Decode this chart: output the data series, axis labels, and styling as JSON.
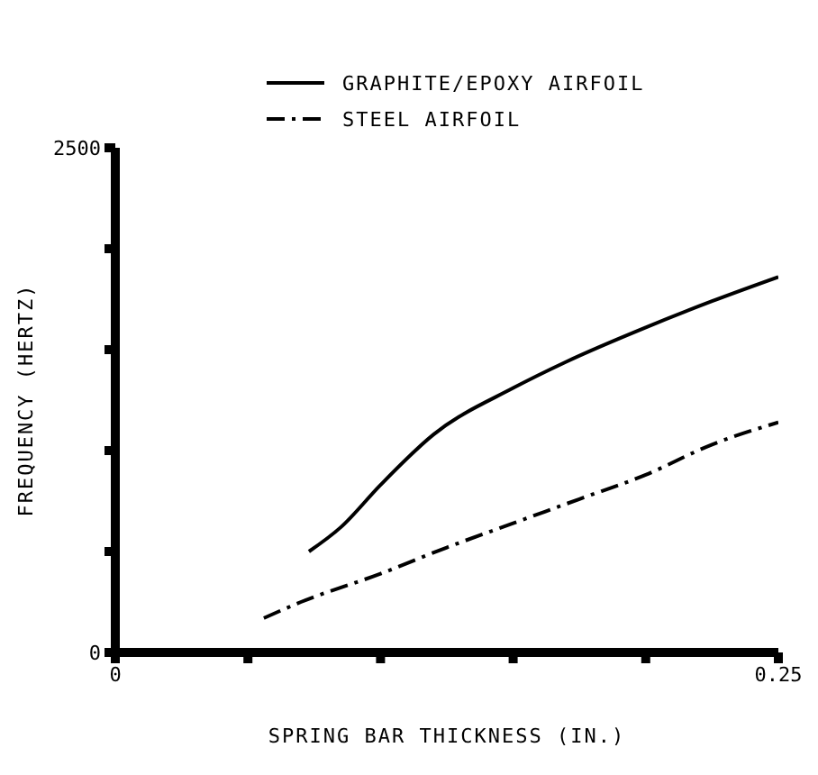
{
  "chart_data": {
    "type": "line",
    "xlabel": "SPRING BAR THICKNESS (IN.)",
    "ylabel": "FREQUENCY (HERTZ)",
    "xlim": [
      0,
      0.25
    ],
    "xticks": [
      0,
      {
        "value": 0.05,
        "label": null
      },
      {
        "value": 0.1,
        "label": null
      },
      {
        "value": 0.15,
        "label": null
      },
      {
        "value": 0.2,
        "label": null
      },
      0.25
    ],
    "ylim": [
      0,
      2500
    ],
    "yticks": [
      0,
      {
        "value": 500,
        "label": null
      },
      {
        "value": 1000,
        "label": null
      },
      {
        "value": 1500,
        "label": null
      },
      {
        "value": 2000,
        "label": null
      },
      2500
    ],
    "grid": false,
    "legend": "top",
    "marker": "none",
    "series": [
      {
        "name": "GRAPHITE/EPOXY AIRFOIL",
        "color": "#000000",
        "line_style": "solid",
        "x": [
          0.073,
          0.085,
          0.1,
          0.12,
          0.15,
          0.17,
          0.2,
          0.225,
          0.25
        ],
        "values": [
          500,
          620,
          830,
          1080,
          1310,
          1440,
          1610,
          1740,
          1860
        ]
      },
      {
        "name": "STEEL AIRFOIL",
        "color": "#000000",
        "line_style": "dashed",
        "x": [
          0.056,
          0.07,
          0.1,
          0.125,
          0.15,
          0.175,
          0.2,
          0.225,
          0.25
        ],
        "values": [
          170,
          250,
          390,
          520,
          640,
          760,
          880,
          1030,
          1140
        ]
      }
    ]
  }
}
